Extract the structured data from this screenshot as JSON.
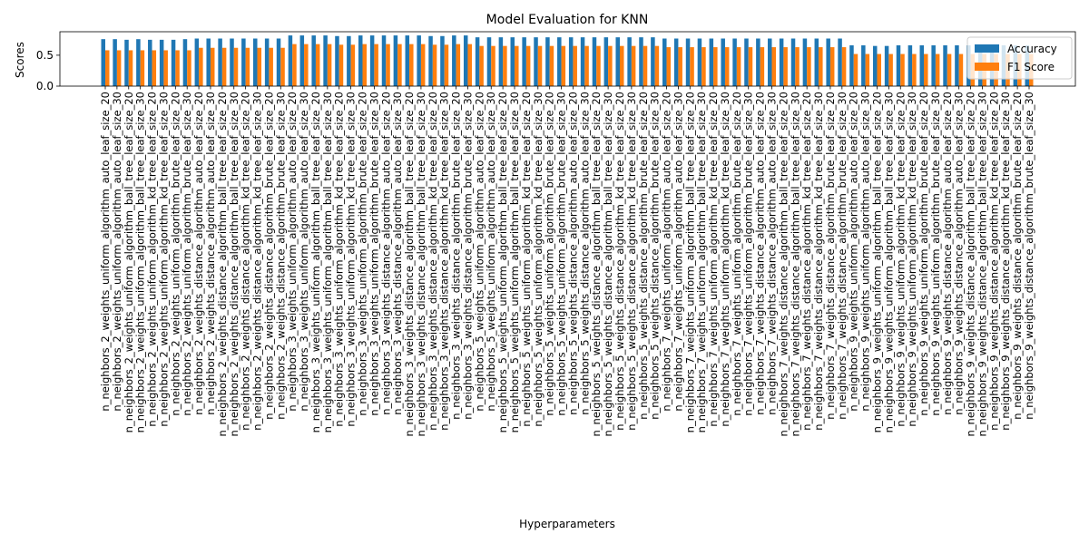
{
  "chart_data": {
    "type": "bar",
    "title": "Model Evaluation for KNN",
    "xlabel": "Hyperparameters",
    "ylabel": "Scores",
    "ylim": [
      0,
      0.88
    ],
    "yticks": [
      "0.0",
      "0.5"
    ],
    "yticks_values": [
      0,
      0.5
    ],
    "legend_position": "top-right",
    "categories": [
      "n_neighbors_2_weights_uniform_algorithm_auto_leaf_size_20",
      "n_neighbors_2_weights_uniform_algorithm_auto_leaf_size_30",
      "n_neighbors_2_weights_uniform_algorithm_ball_tree_leaf_size_20",
      "n_neighbors_2_weights_uniform_algorithm_ball_tree_leaf_size_30",
      "n_neighbors_2_weights_uniform_algorithm_kd_tree_leaf_size_20",
      "n_neighbors_2_weights_uniform_algorithm_kd_tree_leaf_size_30",
      "n_neighbors_2_weights_uniform_algorithm_brute_leaf_size_20",
      "n_neighbors_2_weights_uniform_algorithm_brute_leaf_size_30",
      "n_neighbors_2_weights_distance_algorithm_auto_leaf_size_20",
      "n_neighbors_2_weights_distance_algorithm_auto_leaf_size_30",
      "n_neighbors_2_weights_distance_algorithm_ball_tree_leaf_size_20",
      "n_neighbors_2_weights_distance_algorithm_ball_tree_leaf_size_30",
      "n_neighbors_2_weights_distance_algorithm_kd_tree_leaf_size_20",
      "n_neighbors_2_weights_distance_algorithm_kd_tree_leaf_size_30",
      "n_neighbors_2_weights_distance_algorithm_brute_leaf_size_20",
      "n_neighbors_2_weights_distance_algorithm_brute_leaf_size_30",
      "n_neighbors_3_weights_uniform_algorithm_auto_leaf_size_20",
      "n_neighbors_3_weights_uniform_algorithm_auto_leaf_size_30",
      "n_neighbors_3_weights_uniform_algorithm_ball_tree_leaf_size_20",
      "n_neighbors_3_weights_uniform_algorithm_ball_tree_leaf_size_30",
      "n_neighbors_3_weights_uniform_algorithm_kd_tree_leaf_size_20",
      "n_neighbors_3_weights_uniform_algorithm_kd_tree_leaf_size_30",
      "n_neighbors_3_weights_uniform_algorithm_brute_leaf_size_20",
      "n_neighbors_3_weights_uniform_algorithm_brute_leaf_size_30",
      "n_neighbors_3_weights_distance_algorithm_auto_leaf_size_20",
      "n_neighbors_3_weights_distance_algorithm_auto_leaf_size_30",
      "n_neighbors_3_weights_distance_algorithm_ball_tree_leaf_size_20",
      "n_neighbors_3_weights_distance_algorithm_ball_tree_leaf_size_30",
      "n_neighbors_3_weights_distance_algorithm_kd_tree_leaf_size_20",
      "n_neighbors_3_weights_distance_algorithm_kd_tree_leaf_size_30",
      "n_neighbors_3_weights_distance_algorithm_brute_leaf_size_20",
      "n_neighbors_3_weights_distance_algorithm_brute_leaf_size_30",
      "n_neighbors_5_weights_uniform_algorithm_auto_leaf_size_20",
      "n_neighbors_5_weights_uniform_algorithm_auto_leaf_size_30",
      "n_neighbors_5_weights_uniform_algorithm_ball_tree_leaf_size_20",
      "n_neighbors_5_weights_uniform_algorithm_ball_tree_leaf_size_30",
      "n_neighbors_5_weights_uniform_algorithm_kd_tree_leaf_size_20",
      "n_neighbors_5_weights_uniform_algorithm_kd_tree_leaf_size_30",
      "n_neighbors_5_weights_uniform_algorithm_brute_leaf_size_20",
      "n_neighbors_5_weights_uniform_algorithm_brute_leaf_size_30",
      "n_neighbors_5_weights_distance_algorithm_auto_leaf_size_20",
      "n_neighbors_5_weights_distance_algorithm_auto_leaf_size_30",
      "n_neighbors_5_weights_distance_algorithm_ball_tree_leaf_size_20",
      "n_neighbors_5_weights_distance_algorithm_ball_tree_leaf_size_30",
      "n_neighbors_5_weights_distance_algorithm_kd_tree_leaf_size_20",
      "n_neighbors_5_weights_distance_algorithm_kd_tree_leaf_size_30",
      "n_neighbors_5_weights_distance_algorithm_brute_leaf_size_20",
      "n_neighbors_5_weights_distance_algorithm_brute_leaf_size_30",
      "n_neighbors_7_weights_uniform_algorithm_auto_leaf_size_20",
      "n_neighbors_7_weights_uniform_algorithm_auto_leaf_size_30",
      "n_neighbors_7_weights_uniform_algorithm_ball_tree_leaf_size_20",
      "n_neighbors_7_weights_uniform_algorithm_ball_tree_leaf_size_30",
      "n_neighbors_7_weights_uniform_algorithm_kd_tree_leaf_size_20",
      "n_neighbors_7_weights_uniform_algorithm_kd_tree_leaf_size_30",
      "n_neighbors_7_weights_uniform_algorithm_brute_leaf_size_20",
      "n_neighbors_7_weights_uniform_algorithm_brute_leaf_size_30",
      "n_neighbors_7_weights_distance_algorithm_auto_leaf_size_20",
      "n_neighbors_7_weights_distance_algorithm_auto_leaf_size_30",
      "n_neighbors_7_weights_distance_algorithm_ball_tree_leaf_size_20",
      "n_neighbors_7_weights_distance_algorithm_ball_tree_leaf_size_30",
      "n_neighbors_7_weights_distance_algorithm_kd_tree_leaf_size_20",
      "n_neighbors_7_weights_distance_algorithm_kd_tree_leaf_size_30",
      "n_neighbors_7_weights_distance_algorithm_brute_leaf_size_20",
      "n_neighbors_7_weights_distance_algorithm_brute_leaf_size_30",
      "n_neighbors_9_weights_uniform_algorithm_auto_leaf_size_20",
      "n_neighbors_9_weights_uniform_algorithm_auto_leaf_size_30",
      "n_neighbors_9_weights_uniform_algorithm_ball_tree_leaf_size_20",
      "n_neighbors_9_weights_uniform_algorithm_ball_tree_leaf_size_30",
      "n_neighbors_9_weights_uniform_algorithm_kd_tree_leaf_size_20",
      "n_neighbors_9_weights_uniform_algorithm_kd_tree_leaf_size_30",
      "n_neighbors_9_weights_uniform_algorithm_brute_leaf_size_20",
      "n_neighbors_9_weights_uniform_algorithm_brute_leaf_size_30",
      "n_neighbors_9_weights_distance_algorithm_auto_leaf_size_20",
      "n_neighbors_9_weights_distance_algorithm_auto_leaf_size_30",
      "n_neighbors_9_weights_distance_algorithm_ball_tree_leaf_size_20",
      "n_neighbors_9_weights_distance_algorithm_ball_tree_leaf_size_30",
      "n_neighbors_9_weights_distance_algorithm_kd_tree_leaf_size_20",
      "n_neighbors_9_weights_distance_algorithm_kd_tree_leaf_size_30",
      "n_neighbors_9_weights_distance_algorithm_brute_leaf_size_20",
      "n_neighbors_9_weights_distance_algorithm_brute_leaf_size_30"
    ],
    "series": [
      {
        "name": "Accuracy",
        "color": "#1f77b4",
        "values": [
          0.76,
          0.76,
          0.75,
          0.76,
          0.75,
          0.75,
          0.75,
          0.76,
          0.77,
          0.77,
          0.77,
          0.77,
          0.77,
          0.77,
          0.77,
          0.77,
          0.82,
          0.82,
          0.82,
          0.82,
          0.81,
          0.81,
          0.82,
          0.82,
          0.82,
          0.82,
          0.82,
          0.82,
          0.81,
          0.81,
          0.82,
          0.82,
          0.79,
          0.79,
          0.79,
          0.79,
          0.79,
          0.79,
          0.79,
          0.79,
          0.79,
          0.79,
          0.79,
          0.79,
          0.79,
          0.79,
          0.79,
          0.79,
          0.77,
          0.77,
          0.77,
          0.77,
          0.77,
          0.77,
          0.77,
          0.77,
          0.77,
          0.77,
          0.77,
          0.77,
          0.77,
          0.77,
          0.77,
          0.77,
          0.66,
          0.66,
          0.65,
          0.65,
          0.66,
          0.66,
          0.66,
          0.66,
          0.66,
          0.66,
          0.66,
          0.66,
          0.66,
          0.66,
          0.66,
          0.66
        ]
      },
      {
        "name": "F1 Score",
        "color": "#ff7f0e",
        "values": [
          0.58,
          0.58,
          0.58,
          0.58,
          0.58,
          0.58,
          0.58,
          0.58,
          0.62,
          0.62,
          0.62,
          0.62,
          0.62,
          0.62,
          0.62,
          0.62,
          0.68,
          0.68,
          0.68,
          0.68,
          0.67,
          0.67,
          0.68,
          0.68,
          0.68,
          0.68,
          0.68,
          0.68,
          0.67,
          0.67,
          0.68,
          0.68,
          0.65,
          0.65,
          0.65,
          0.65,
          0.65,
          0.65,
          0.65,
          0.65,
          0.65,
          0.65,
          0.65,
          0.65,
          0.65,
          0.65,
          0.65,
          0.65,
          0.63,
          0.63,
          0.63,
          0.63,
          0.63,
          0.63,
          0.63,
          0.63,
          0.63,
          0.63,
          0.63,
          0.63,
          0.63,
          0.63,
          0.63,
          0.63,
          0.52,
          0.52,
          0.52,
          0.52,
          0.52,
          0.52,
          0.52,
          0.52,
          0.52,
          0.52,
          0.52,
          0.52,
          0.52,
          0.52,
          0.52,
          0.52
        ]
      }
    ]
  }
}
